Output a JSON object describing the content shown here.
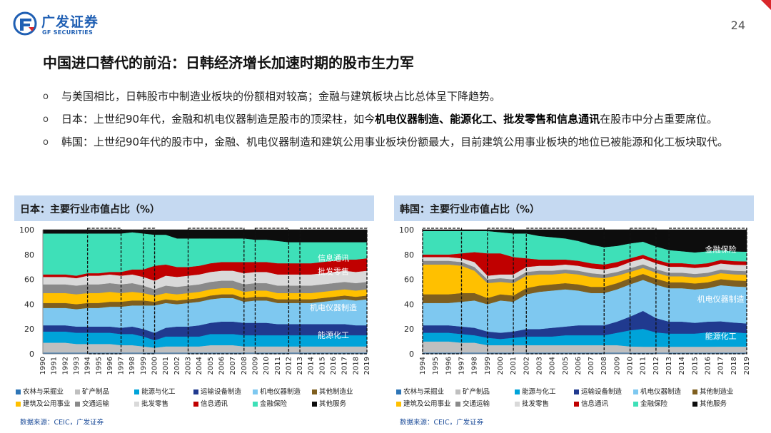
{
  "header": {
    "logo_cn": "广发证券",
    "logo_en": "GF SECURITIES",
    "page_number": "24"
  },
  "title": "中国进口替代的前沿：日韩经济增长加速时期的股市生力军",
  "bullets": [
    {
      "marker": "o",
      "parts": [
        {
          "t": "与美国相比，日韩股市中制造业板块的份额相对较高；金融与建筑板块占比总体呈下降趋势。",
          "b": false
        }
      ]
    },
    {
      "marker": "o",
      "parts": [
        {
          "t": "日本：上世纪90年代，金融和机电仪器制造是股市的顶梁柱，如今",
          "b": false
        },
        {
          "t": "机电仪器制造、能源化工、批发零售和信息通讯",
          "b": true
        },
        {
          "t": "在股市中分占重要席位。",
          "b": false
        }
      ]
    },
    {
      "marker": "o",
      "parts": [
        {
          "t": "韩国：上世纪90年代的股市中，金融、机电仪器制造和建筑公用事业板块份额最大，目前建筑公用事业板块的地位已被能源和化工板块取代。",
          "b": false
        }
      ]
    }
  ],
  "legend": {
    "items": [
      "农林与采掘业",
      "矿产制品",
      "能源与化工",
      "运输设备制造",
      "机电仪器制造",
      "其他制造业",
      "建筑及公用事业",
      "交通运输",
      "批发零售",
      "信息通讯",
      "金融保险",
      "其他服务"
    ],
    "colors": [
      "#2e75b6",
      "#bfbfbf",
      "#00a3d9",
      "#203a8f",
      "#7ec8f0",
      "#7f5f1f",
      "#ffc000",
      "#8a8a8a",
      "#d9d9d9",
      "#c00000",
      "#3ee0b8",
      "#0d0d0d"
    ]
  },
  "chart_data": [
    {
      "type": "area",
      "title": "日本：主要行业市值占比（%）",
      "source": "数据来源：CEIC，广发证券",
      "ylim": [
        0,
        100
      ],
      "yticks": [
        "0",
        "20",
        "40",
        "60",
        "80",
        "100"
      ],
      "x": [
        "1990",
        "1991",
        "1992",
        "1993",
        "1994",
        "1995",
        "1996",
        "1997",
        "1998",
        "1999",
        "2000",
        "2001",
        "2002",
        "2003",
        "2004",
        "2005",
        "2006",
        "2007",
        "2008",
        "2009",
        "2010",
        "2011",
        "2012",
        "2013",
        "2014",
        "2015",
        "2016",
        "2017",
        "2018",
        "2019"
      ],
      "annotations": [
        {
          "text": "信息通讯",
          "x": "2016",
          "y": 75
        },
        {
          "text": "批发零售",
          "x": "2016",
          "y": 64
        },
        {
          "text": "机电仪器制造",
          "x": "2016",
          "y": 35
        },
        {
          "text": "能源化工",
          "x": "2016",
          "y": 13
        }
      ],
      "dashed_periods": [
        [
          "1994",
          "1997"
        ],
        [
          "1999",
          "2000"
        ],
        [
          "2003",
          "2008"
        ],
        [
          "2009",
          "2012"
        ],
        [
          "2013",
          "2019"
        ]
      ],
      "series": [
        {
          "name": "农林与采掘业",
          "values": [
            1,
            1,
            1,
            1,
            1,
            1,
            1,
            1,
            1,
            1,
            1,
            1,
            1,
            1,
            1,
            1,
            1,
            1,
            1,
            1,
            1,
            1,
            1,
            1,
            1,
            1,
            1,
            1,
            1,
            1
          ]
        },
        {
          "name": "矿产制品",
          "values": [
            8,
            8,
            8,
            7,
            7,
            7,
            7,
            6,
            6,
            5,
            4,
            5,
            5,
            5,
            5,
            6,
            6,
            6,
            5,
            5,
            5,
            5,
            5,
            5,
            5,
            5,
            5,
            5,
            5,
            5
          ]
        },
        {
          "name": "能源与化工",
          "values": [
            9,
            9,
            9,
            9,
            9,
            9,
            9,
            9,
            9,
            8,
            6,
            8,
            8,
            8,
            8,
            9,
            9,
            9,
            9,
            9,
            9,
            9,
            9,
            9,
            9,
            9,
            9,
            9,
            9,
            9
          ]
        },
        {
          "name": "运输设备制造",
          "values": [
            5,
            5,
            5,
            5,
            5,
            5,
            5,
            5,
            6,
            6,
            6,
            7,
            8,
            8,
            9,
            9,
            10,
            10,
            10,
            10,
            10,
            9,
            9,
            9,
            9,
            9,
            9,
            9,
            8,
            8
          ]
        },
        {
          "name": "机电仪器制造",
          "values": [
            14,
            14,
            14,
            14,
            15,
            15,
            16,
            17,
            17,
            19,
            22,
            20,
            18,
            19,
            19,
            19,
            19,
            19,
            17,
            18,
            18,
            17,
            17,
            17,
            17,
            18,
            19,
            20,
            20,
            21
          ]
        },
        {
          "name": "其他制造业",
          "values": [
            4,
            4,
            4,
            4,
            4,
            4,
            4,
            4,
            4,
            4,
            3,
            3,
            3,
            3,
            3,
            3,
            3,
            3,
            3,
            3,
            3,
            3,
            3,
            3,
            3,
            3,
            3,
            3,
            3,
            3
          ]
        },
        {
          "name": "建筑及公用事业",
          "values": [
            8,
            8,
            8,
            8,
            8,
            8,
            8,
            7,
            7,
            6,
            5,
            5,
            5,
            5,
            5,
            5,
            5,
            5,
            5,
            5,
            5,
            5,
            5,
            5,
            5,
            5,
            5,
            5,
            5,
            5
          ]
        },
        {
          "name": "交通运输",
          "values": [
            7,
            7,
            7,
            7,
            7,
            7,
            7,
            7,
            7,
            6,
            5,
            6,
            6,
            6,
            6,
            6,
            6,
            6,
            6,
            6,
            6,
            6,
            6,
            6,
            6,
            6,
            6,
            6,
            6,
            6
          ]
        },
        {
          "name": "批发零售",
          "values": [
            6,
            6,
            6,
            6,
            7,
            7,
            7,
            7,
            7,
            7,
            7,
            8,
            8,
            8,
            8,
            8,
            8,
            8,
            9,
            9,
            9,
            9,
            9,
            9,
            9,
            9,
            9,
            9,
            9,
            9
          ]
        },
        {
          "name": "信息通讯",
          "values": [
            2,
            2,
            2,
            2,
            2,
            2,
            2,
            3,
            4,
            6,
            12,
            9,
            8,
            7,
            7,
            7,
            7,
            7,
            9,
            8,
            8,
            9,
            9,
            9,
            9,
            9,
            9,
            9,
            10,
            10
          ]
        },
        {
          "name": "金融保险",
          "values": [
            33,
            33,
            33,
            34,
            32,
            32,
            31,
            31,
            30,
            29,
            25,
            24,
            23,
            23,
            22,
            20,
            19,
            19,
            19,
            18,
            18,
            18,
            17,
            17,
            17,
            16,
            15,
            14,
            14,
            13
          ]
        },
        {
          "name": "其他服务",
          "values": [
            3,
            3,
            3,
            3,
            3,
            3,
            3,
            3,
            2,
            3,
            4,
            4,
            7,
            7,
            7,
            7,
            7,
            7,
            7,
            8,
            8,
            9,
            10,
            10,
            10,
            10,
            10,
            10,
            10,
            10
          ]
        }
      ]
    },
    {
      "type": "area",
      "title": "韩国：主要行业市值占比（%）",
      "source": "数据来源：CEIC，广发证券",
      "ylim": [
        0,
        100
      ],
      "yticks": [
        "0",
        "20",
        "40",
        "60",
        "80",
        "100"
      ],
      "x": [
        "1994",
        "1995",
        "1996",
        "1997",
        "1998",
        "1999",
        "2000",
        "2001",
        "2002",
        "2003",
        "2004",
        "2005",
        "2006",
        "2007",
        "2008",
        "2009",
        "2010",
        "2011",
        "2012",
        "2013",
        "2014",
        "2015",
        "2016",
        "2017",
        "2018",
        "2019"
      ],
      "annotations": [
        {
          "text": "金融保险",
          "x": "2017",
          "y": 82
        },
        {
          "text": "机电仪器制造",
          "x": "2017",
          "y": 42
        },
        {
          "text": "能源化工",
          "x": "2017",
          "y": 12
        }
      ],
      "dashed_periods": [
        [
          "1994",
          "1997"
        ],
        [
          "1999",
          "2001"
        ],
        [
          "2002",
          "2008"
        ],
        [
          "2010",
          "2012"
        ],
        [
          "2013",
          "2019"
        ]
      ],
      "series": [
        {
          "name": "农林与采掘业",
          "values": [
            1,
            1,
            1,
            1,
            1,
            1,
            1,
            1,
            1,
            1,
            1,
            1,
            1,
            1,
            1,
            1,
            1,
            1,
            1,
            1,
            1,
            1,
            1,
            1,
            1,
            1
          ]
        },
        {
          "name": "矿产制品",
          "values": [
            9,
            9,
            9,
            8,
            8,
            6,
            6,
            6,
            6,
            6,
            6,
            6,
            6,
            6,
            6,
            6,
            5,
            5,
            5,
            5,
            5,
            5,
            5,
            5,
            5,
            5
          ]
        },
        {
          "name": "能源与化工",
          "values": [
            7,
            7,
            7,
            7,
            6,
            6,
            5,
            6,
            7,
            7,
            7,
            8,
            8,
            8,
            8,
            10,
            13,
            15,
            12,
            11,
            11,
            11,
            12,
            12,
            12,
            11
          ]
        },
        {
          "name": "运输设备制造",
          "values": [
            6,
            6,
            6,
            6,
            6,
            5,
            5,
            5,
            6,
            6,
            7,
            7,
            8,
            8,
            8,
            9,
            11,
            15,
            12,
            10,
            10,
            9,
            9,
            9,
            8,
            8
          ]
        },
        {
          "name": "机电仪器制造",
          "values": [
            18,
            18,
            18,
            20,
            22,
            22,
            26,
            24,
            28,
            30,
            30,
            30,
            28,
            26,
            26,
            26,
            26,
            26,
            28,
            28,
            28,
            28,
            28,
            30,
            30,
            30
          ]
        },
        {
          "name": "其他制造业",
          "values": [
            7,
            7,
            7,
            7,
            6,
            5,
            5,
            5,
            5,
            5,
            5,
            5,
            5,
            5,
            5,
            5,
            5,
            5,
            5,
            5,
            5,
            5,
            5,
            5,
            5,
            5
          ]
        },
        {
          "name": "建筑及公用事业",
          "values": [
            24,
            24,
            24,
            22,
            18,
            12,
            10,
            10,
            10,
            9,
            8,
            8,
            8,
            8,
            7,
            6,
            5,
            5,
            5,
            5,
            5,
            5,
            5,
            5,
            5,
            5
          ]
        },
        {
          "name": "交通运输",
          "values": [
            3,
            3,
            3,
            3,
            3,
            3,
            3,
            3,
            3,
            3,
            3,
            3,
            3,
            3,
            3,
            3,
            3,
            3,
            3,
            3,
            3,
            3,
            3,
            3,
            3,
            3
          ]
        },
        {
          "name": "批发零售",
          "values": [
            3,
            3,
            3,
            3,
            4,
            3,
            3,
            4,
            4,
            4,
            4,
            4,
            4,
            4,
            4,
            4,
            5,
            5,
            5,
            5,
            5,
            5,
            5,
            5,
            5,
            5
          ]
        },
        {
          "name": "信息通讯",
          "values": [
            2,
            2,
            2,
            4,
            8,
            18,
            17,
            14,
            7,
            5,
            5,
            4,
            4,
            4,
            4,
            4,
            3,
            3,
            3,
            3,
            3,
            3,
            3,
            3,
            3,
            3
          ]
        },
        {
          "name": "金融保险",
          "values": [
            19,
            19,
            19,
            18,
            17,
            18,
            17,
            19,
            20,
            19,
            18,
            17,
            16,
            15,
            14,
            13,
            12,
            11,
            11,
            11,
            10,
            10,
            10,
            8,
            8,
            8
          ]
        },
        {
          "name": "其他服务",
          "values": [
            1,
            1,
            1,
            1,
            1,
            1,
            2,
            3,
            3,
            5,
            6,
            7,
            9,
            12,
            14,
            13,
            11,
            10,
            14,
            17,
            18,
            19,
            18,
            17,
            18,
            18
          ]
        }
      ]
    }
  ]
}
